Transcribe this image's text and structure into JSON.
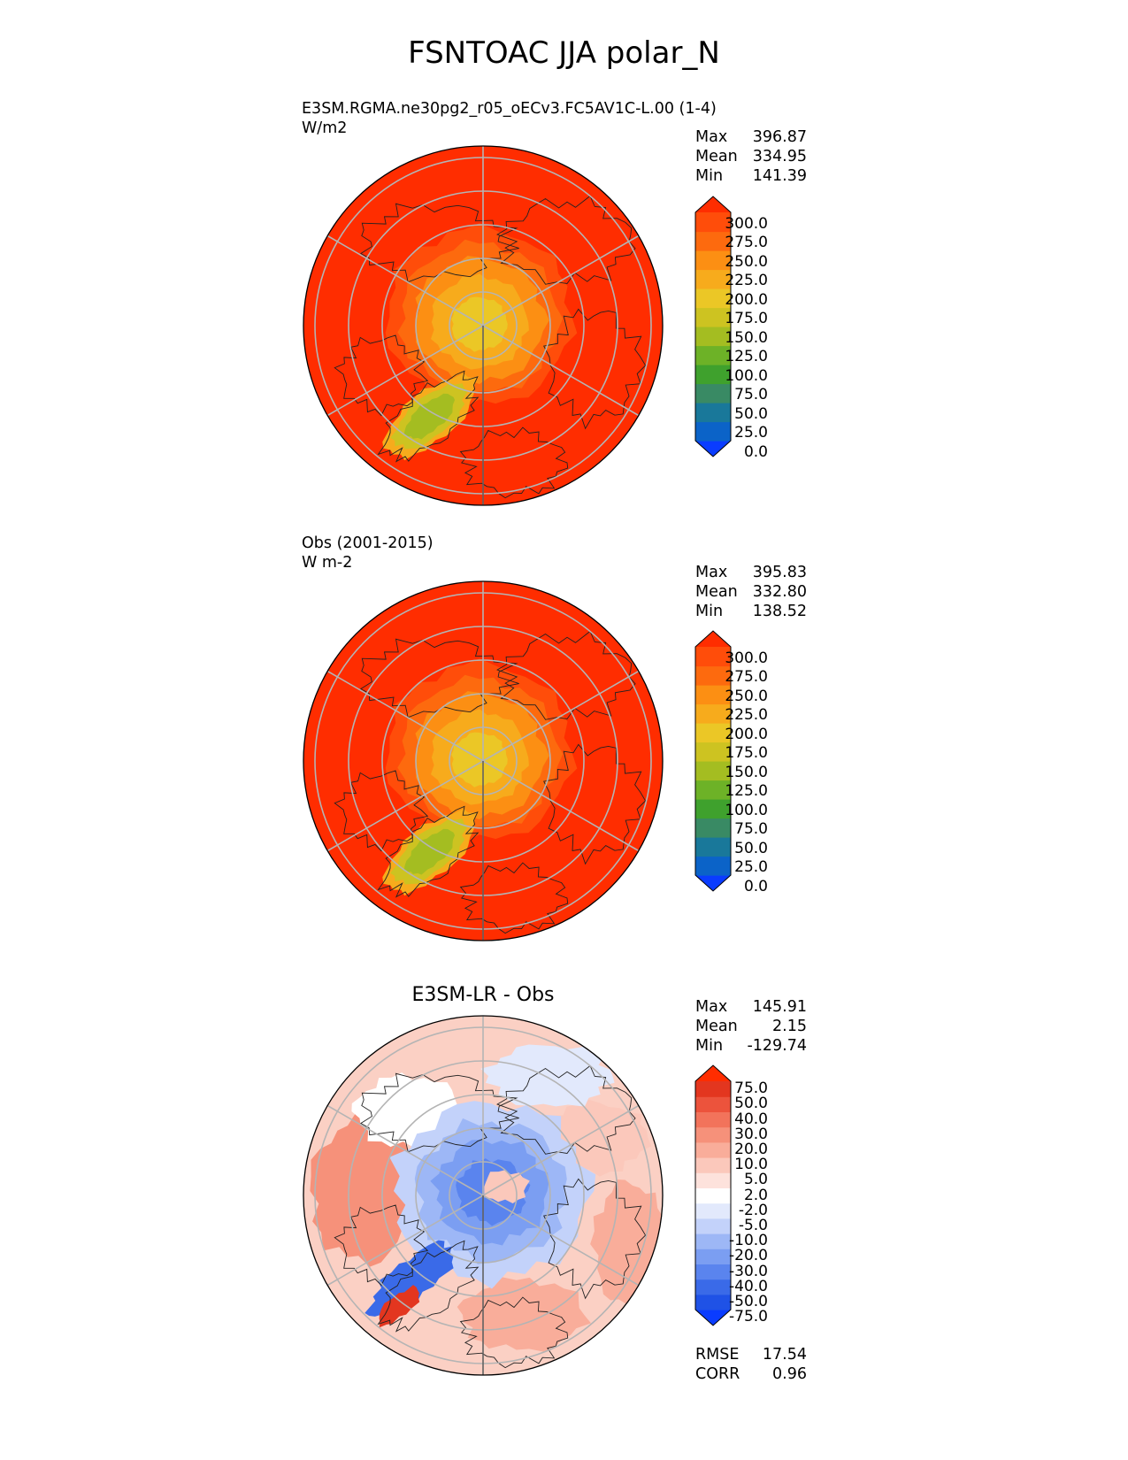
{
  "title": "FSNTOAC JJA polar_N",
  "panels": [
    {
      "id": "test",
      "label_line1": "E3SM.RGMA.ne30pg2_r05_oECv3.FC5AV1C-L.00 (1-4)",
      "label_line2": "W/m2",
      "center_title": "",
      "stats": [
        {
          "label": "Max",
          "value": "396.87"
        },
        {
          "label": "Mean",
          "value": "334.95"
        },
        {
          "label": "Min",
          "value": "141.39"
        }
      ],
      "extra_stats": []
    },
    {
      "id": "ref",
      "label_line1": "Obs (2001-2015)",
      "label_line2": "W m-2",
      "center_title": "",
      "stats": [
        {
          "label": "Max",
          "value": "395.83"
        },
        {
          "label": "Mean",
          "value": "332.80"
        },
        {
          "label": "Min",
          "value": "138.52"
        }
      ],
      "extra_stats": []
    },
    {
      "id": "diff",
      "label_line1": "",
      "label_line2": "",
      "center_title": "E3SM-LR - Obs",
      "stats": [
        {
          "label": "Max",
          "value": "145.91"
        },
        {
          "label": "Mean",
          "value": "2.15"
        },
        {
          "label": "Min",
          "value": "-129.74"
        }
      ],
      "extra_stats": [
        {
          "label": "RMSE",
          "value": "17.54"
        },
        {
          "label": "CORR",
          "value": "0.96"
        }
      ]
    }
  ],
  "chart_data": [
    {
      "type": "heatmap",
      "projection": "north polar stereographic",
      "title": "E3SM.RGMA.ne30pg2_r05_oECv3.FC5AV1C-L.00 (1-4)",
      "units": "W/m2",
      "colorbar_levels": [
        0,
        25,
        50,
        75,
        100,
        125,
        150,
        175,
        200,
        225,
        250,
        275,
        300
      ],
      "colorbar_labels": [
        "300.0",
        "275.0",
        "250.0",
        "225.0",
        "200.0",
        "175.0",
        "150.0",
        "125.0",
        "100.0",
        "75.0",
        "50.0",
        "25.0",
        "0.0"
      ],
      "colorbar_colors": [
        "#0a3cff",
        "#0b63c8",
        "#19789a",
        "#398a64",
        "#3fa12d",
        "#6db227",
        "#a4bd21",
        "#cdc321",
        "#ebc726",
        "#f7ab1c",
        "#fc8f13",
        "#fd6a0e",
        "#ff4d0a",
        "#ff2d00"
      ],
      "field": {
        "max": 396.87,
        "mean": 334.95,
        "min": 141.39
      }
    },
    {
      "type": "heatmap",
      "projection": "north polar stereographic",
      "title": "Obs (2001-2015)",
      "units": "W m-2",
      "colorbar_levels": [
        0,
        25,
        50,
        75,
        100,
        125,
        150,
        175,
        200,
        225,
        250,
        275,
        300
      ],
      "colorbar_labels": [
        "300.0",
        "275.0",
        "250.0",
        "225.0",
        "200.0",
        "175.0",
        "150.0",
        "125.0",
        "100.0",
        "75.0",
        "50.0",
        "25.0",
        "0.0"
      ],
      "colorbar_colors": [
        "#0a3cff",
        "#0b63c8",
        "#19789a",
        "#398a64",
        "#3fa12d",
        "#6db227",
        "#a4bd21",
        "#cdc321",
        "#ebc726",
        "#f7ab1c",
        "#fc8f13",
        "#fd6a0e",
        "#ff4d0a",
        "#ff2d00"
      ],
      "field": {
        "max": 395.83,
        "mean": 332.8,
        "min": 138.52
      }
    },
    {
      "type": "heatmap",
      "projection": "north polar stereographic",
      "title": "E3SM-LR - Obs",
      "colorbar_levels": [
        -75,
        -50,
        -40,
        -30,
        -20,
        -10,
        -5,
        -2,
        2,
        5,
        10,
        20,
        30,
        40,
        50,
        75
      ],
      "colorbar_labels": [
        "75.0",
        "50.0",
        "40.0",
        "30.0",
        "20.0",
        "10.0",
        "5.0",
        "2.0",
        "-2.0",
        "-5.0",
        "-10.0",
        "-20.0",
        "-30.0",
        "-40.0",
        "-50.0",
        "-75.0"
      ],
      "colorbar_colors": [
        "#0a3cff",
        "#1f52e6",
        "#3a6ae8",
        "#5a84ee",
        "#7b9ef2",
        "#9db7f6",
        "#c3d2fa",
        "#e2e9fc",
        "#ffffff",
        "#fde2dc",
        "#fbc8bb",
        "#f9ad9a",
        "#f6917a",
        "#f2735b",
        "#ec533c",
        "#e3361f",
        "#ff2d00"
      ],
      "field": {
        "max": 145.91,
        "mean": 2.15,
        "min": -129.74,
        "rmse": 17.54,
        "corr": 0.96
      }
    }
  ]
}
